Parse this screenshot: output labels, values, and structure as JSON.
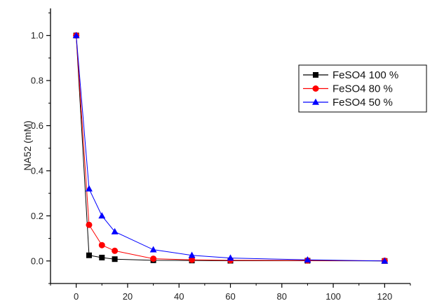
{
  "chart_data": {
    "type": "line",
    "title": "",
    "xlabel": "",
    "ylabel": "NA52 (mM)",
    "xlim": [
      -10,
      130
    ],
    "ylim": [
      -0.1,
      1.12
    ],
    "xticks": [
      0,
      20,
      40,
      60,
      80,
      100,
      120
    ],
    "yticks": [
      0.0,
      0.2,
      0.4,
      0.6,
      0.8,
      1.0
    ],
    "ytick_labels": [
      "0.0",
      "0.2",
      "0.4",
      "0.6",
      "0.8",
      "1.0"
    ],
    "grid": false,
    "legend_position": "top-right",
    "series": [
      {
        "name": "FeSO4 100 %",
        "marker": "square",
        "color": "#000000",
        "x": [
          0,
          5,
          10,
          15,
          30,
          45,
          60,
          90,
          120
        ],
        "y": [
          1.0,
          0.025,
          0.015,
          0.008,
          0.003,
          0.002,
          0.001,
          0.001,
          0.0
        ]
      },
      {
        "name": "FeSO4 80 %",
        "marker": "circle",
        "color": "#ff0000",
        "x": [
          0,
          5,
          10,
          15,
          30,
          45,
          60,
          90,
          120
        ],
        "y": [
          1.0,
          0.16,
          0.07,
          0.045,
          0.01,
          0.005,
          0.003,
          0.002,
          0.001
        ]
      },
      {
        "name": "FeSO4 50 %",
        "marker": "triangle",
        "color": "#0000ff",
        "x": [
          0,
          5,
          10,
          15,
          30,
          45,
          60,
          90,
          120
        ],
        "y": [
          1.0,
          0.32,
          0.2,
          0.13,
          0.05,
          0.025,
          0.013,
          0.005,
          0.0
        ]
      }
    ]
  }
}
